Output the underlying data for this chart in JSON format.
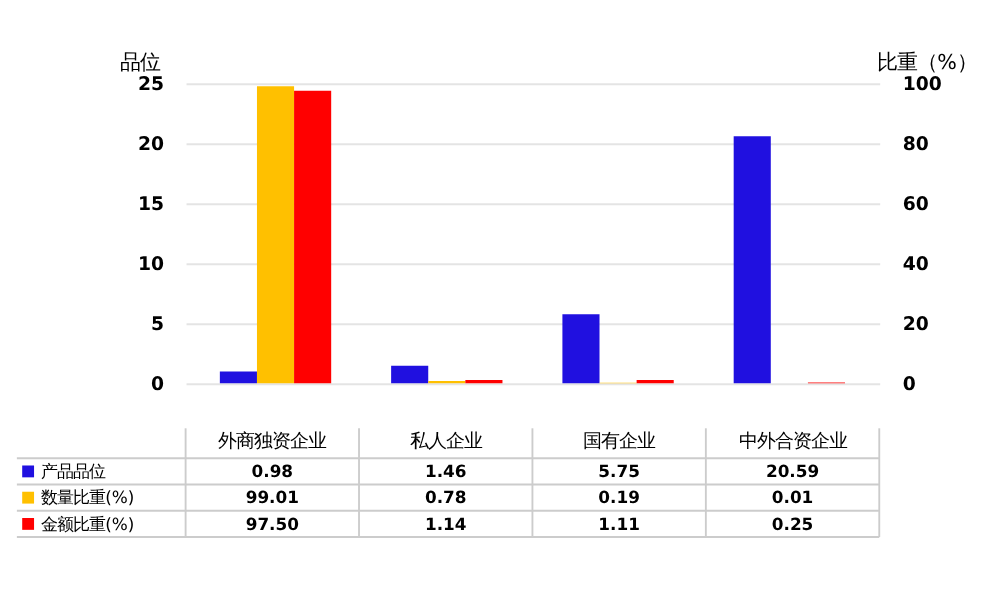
{
  "chart_data": {
    "type": "bar",
    "categories": [
      "外商独资企业",
      "私人企业",
      "国有企业",
      "中外合资企业"
    ],
    "ylabel": "品位",
    "y2label": "比重（%）",
    "ylim": [
      0,
      25
    ],
    "yticks": [
      0,
      5,
      10,
      15,
      20,
      25
    ],
    "y2lim": [
      0,
      100
    ],
    "y2ticks": [
      0,
      20,
      40,
      60,
      80,
      100
    ],
    "grid": "y",
    "legend": "bottom",
    "series": [
      {
        "name": "产品品位",
        "color": "#2010e0",
        "values": [
          0.98,
          1.46,
          5.75,
          20.59
        ],
        "value_labels": [
          "0.98",
          "1.46",
          "5.75",
          "20.59"
        ]
      },
      {
        "name": "数量比重(%)",
        "color": "#ffc000",
        "values": [
          99.01,
          0.78,
          0.19,
          0.01
        ],
        "value_labels": [
          "99.01",
          "0.78",
          "0.19",
          "0.01"
        ],
        "axis": "y2"
      },
      {
        "name": "金额比重(%)",
        "color": "#ff0000",
        "values": [
          97.5,
          1.14,
          1.11,
          0.25
        ],
        "value_labels": [
          "97.50",
          "1.14",
          "1.11",
          "0.25"
        ],
        "axis": "y2"
      }
    ]
  }
}
